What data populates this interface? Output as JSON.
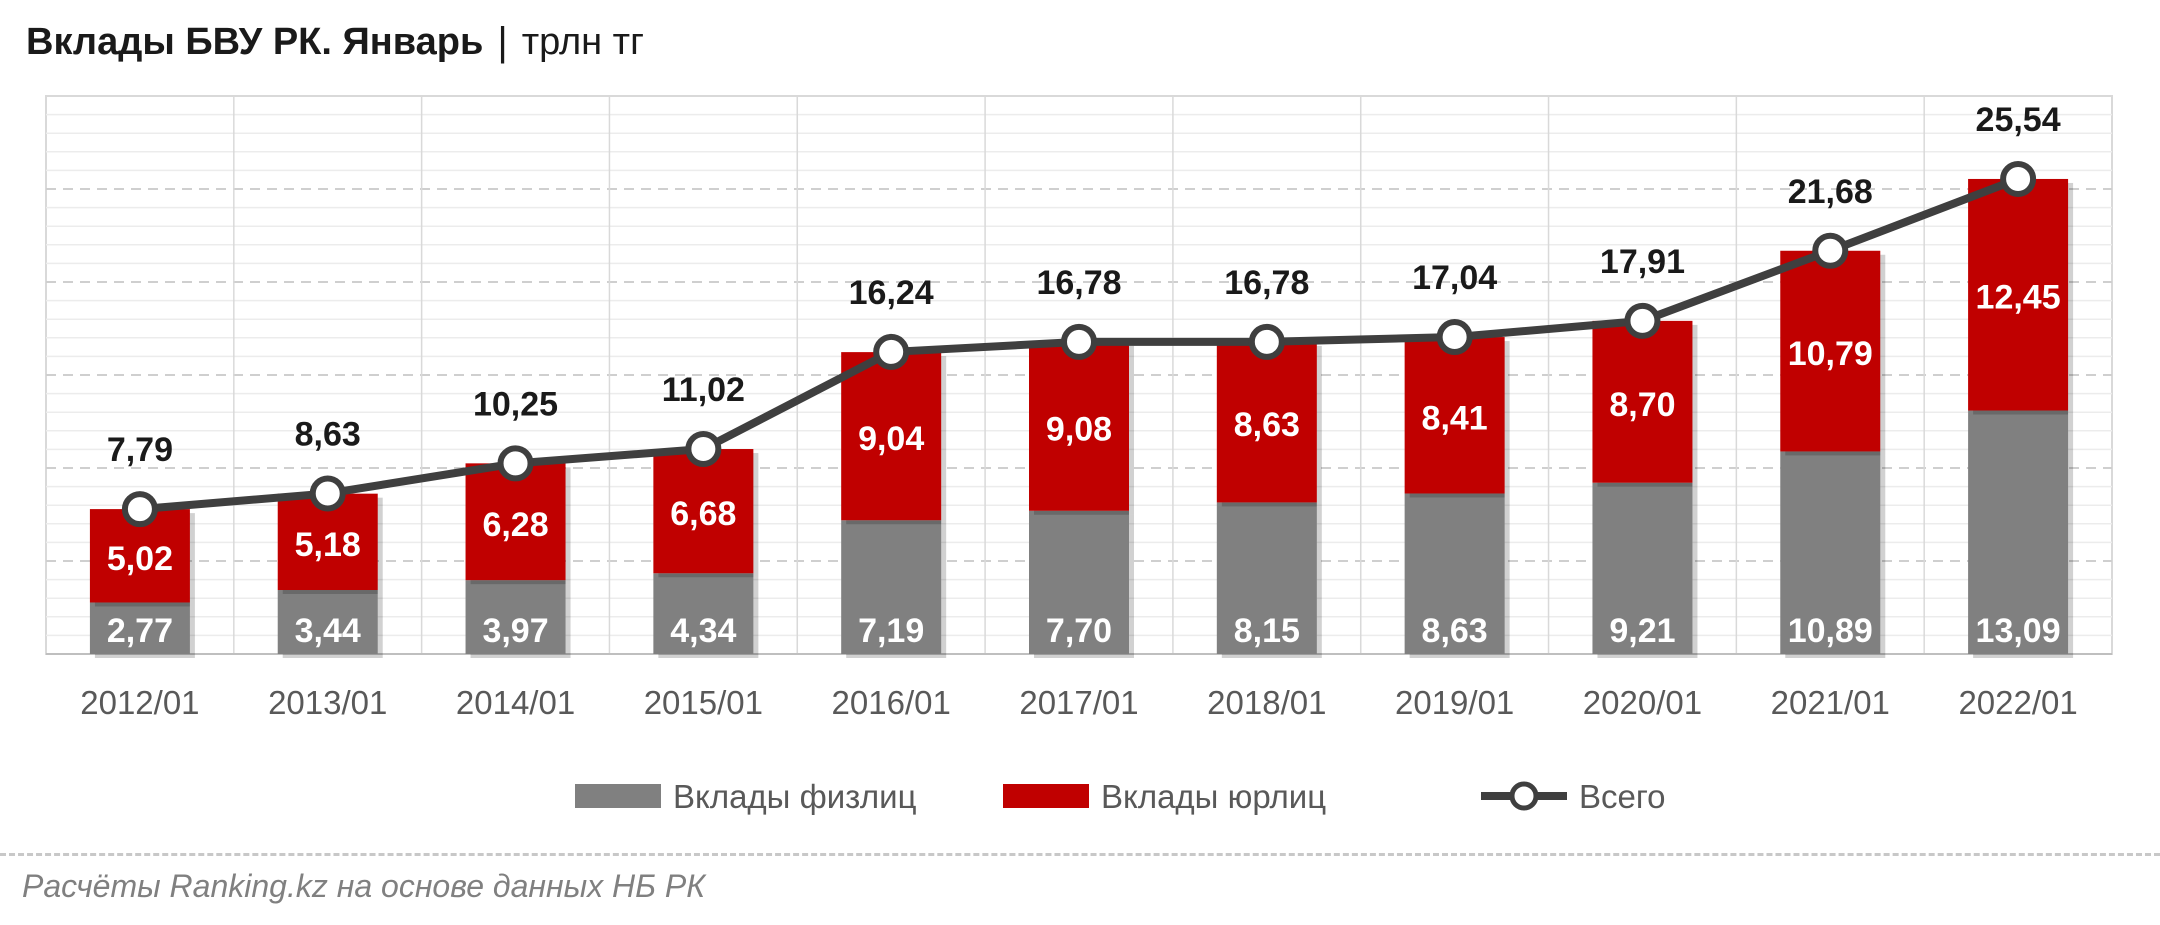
{
  "header": {
    "title": "Вклады БВУ РК. Январь",
    "separator": "|",
    "unit": "трлн тг"
  },
  "source": "Расчёты Ranking.kz на основе данных НБ РК",
  "chart_data": {
    "type": "bar",
    "stacked": true,
    "categories": [
      "2012/01",
      "2013/01",
      "2014/01",
      "2015/01",
      "2016/01",
      "2017/01",
      "2018/01",
      "2019/01",
      "2020/01",
      "2021/01",
      "2022/01"
    ],
    "series": [
      {
        "name": "Вклады физлиц",
        "kind": "bar",
        "color": "#808080",
        "values": [
          2.77,
          3.44,
          3.97,
          4.34,
          7.19,
          7.7,
          8.15,
          8.63,
          9.21,
          10.89,
          13.09
        ],
        "labels": [
          "2,77",
          "3,44",
          "3,97",
          "4,34",
          "7,19",
          "7,70",
          "8,15",
          "8,63",
          "9,21",
          "10,89",
          "13,09"
        ]
      },
      {
        "name": "Вклады юрлиц",
        "kind": "bar",
        "color": "#c00000",
        "values": [
          5.02,
          5.18,
          6.28,
          6.68,
          9.04,
          9.08,
          8.63,
          8.41,
          8.7,
          10.79,
          12.45
        ],
        "labels": [
          "5,02",
          "5,18",
          "6,28",
          "6,68",
          "9,04",
          "9,08",
          "8,63",
          "8,41",
          "8,70",
          "10,79",
          "12,45"
        ]
      },
      {
        "name": "Всего",
        "kind": "line",
        "color": "#3f3f3f",
        "values": [
          7.79,
          8.63,
          10.25,
          11.02,
          16.24,
          16.78,
          16.78,
          17.04,
          17.91,
          21.68,
          25.54
        ],
        "labels": [
          "7,79",
          "8,63",
          "10,25",
          "11,02",
          "16,24",
          "16,78",
          "16,78",
          "17,04",
          "17,91",
          "21,68",
          "25,54"
        ]
      }
    ],
    "ylim": [
      0,
      30
    ],
    "grid": true,
    "legend_position": "bottom"
  }
}
